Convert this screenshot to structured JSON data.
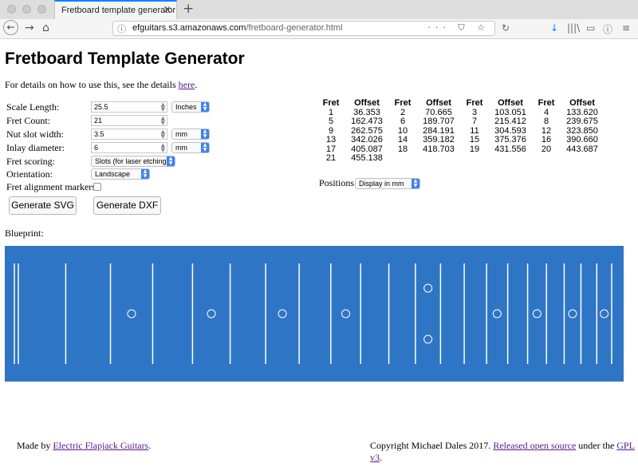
{
  "browser": {
    "tab_title": "Fretboard template generator",
    "tab_close": "×",
    "new_tab": "+",
    "back": "←",
    "forward": "→",
    "home": "⌂",
    "url_host": "efguitars.s3.amazonaws.com",
    "url_path": "/fretboard-generator.html",
    "url_actions": "··· ⛉ ☆",
    "reload": "↻",
    "tools": [
      "↓",
      "|||\\",
      "▭",
      "ⓘ",
      "≡"
    ]
  },
  "page": {
    "title": "Fretboard Template Generator",
    "intro_text": "For details on how to use this, see the details ",
    "intro_link": "here",
    "intro_end": ".",
    "form": {
      "scale_length": {
        "label": "Scale Length:",
        "value": "25.5",
        "unit": "Inches"
      },
      "fret_count": {
        "label": "Fret Count:",
        "value": "21"
      },
      "nut_slot_width": {
        "label": "Nut slot width:",
        "value": "3.5",
        "unit": "mm"
      },
      "inlay_diameter": {
        "label": "Inlay diameter:",
        "value": "6",
        "unit": "mm"
      },
      "fret_scoring": {
        "label": "Fret scoring:",
        "value": "Slots (for laser etching)"
      },
      "orientation": {
        "label": "Orientation:",
        "value": "Landscape"
      },
      "fret_alignment_markers": {
        "label": "Fret alignment markers:",
        "checked": false
      }
    },
    "buttons": {
      "svg": "Generate SVG",
      "dxf": "Generate DXF"
    },
    "fret_table": {
      "headers": [
        "Fret",
        "Offset",
        "Fret",
        "Offset",
        "Fret",
        "Offset",
        "Fret",
        "Offset"
      ],
      "rows": [
        [
          "1",
          "36.353",
          "2",
          "70.665",
          "3",
          "103.051",
          "4",
          "133.620"
        ],
        [
          "5",
          "162.473",
          "6",
          "189.707",
          "7",
          "215.412",
          "8",
          "239.675"
        ],
        [
          "9",
          "262.575",
          "10",
          "284.191",
          "11",
          "304.593",
          "12",
          "323.850"
        ],
        [
          "13",
          "342.026",
          "14",
          "359.182",
          "15",
          "375.376",
          "16",
          "390.660"
        ],
        [
          "17",
          "405.087",
          "18",
          "418.703",
          "19",
          "431.556",
          "20",
          "443.687"
        ],
        [
          "21",
          "455.138",
          "",
          "",
          "",
          "",
          "",
          ""
        ]
      ]
    },
    "positions": {
      "label": "Positions:",
      "value": "Display in mm"
    },
    "blueprint_label": "Blueprint:",
    "blueprint": {
      "background": "#2f75c5",
      "line_color": "#ffffff",
      "scale_length_mm": 647.7,
      "fret_offsets_mm": [
        36.353,
        70.665,
        103.051,
        133.62,
        162.473,
        189.707,
        215.412,
        239.675,
        262.575,
        284.191,
        304.593,
        323.85,
        342.026,
        359.182,
        375.376,
        390.66,
        405.087,
        418.703,
        431.556,
        443.687,
        455.138
      ],
      "single_inlay_frets": [
        3,
        5,
        7,
        9,
        15,
        17,
        19,
        21
      ],
      "double_inlay_frets": [
        12
      ]
    },
    "footer": {
      "made_by": "Made by ",
      "made_by_link": "Electric Flapjack Guitars",
      "made_by_end": ".",
      "copyright": "Copyright Michael Dales 2017. ",
      "open_source_link": "Released open source",
      "under": " under the ",
      "gpl_link": "GPL v3",
      "end": "."
    }
  }
}
